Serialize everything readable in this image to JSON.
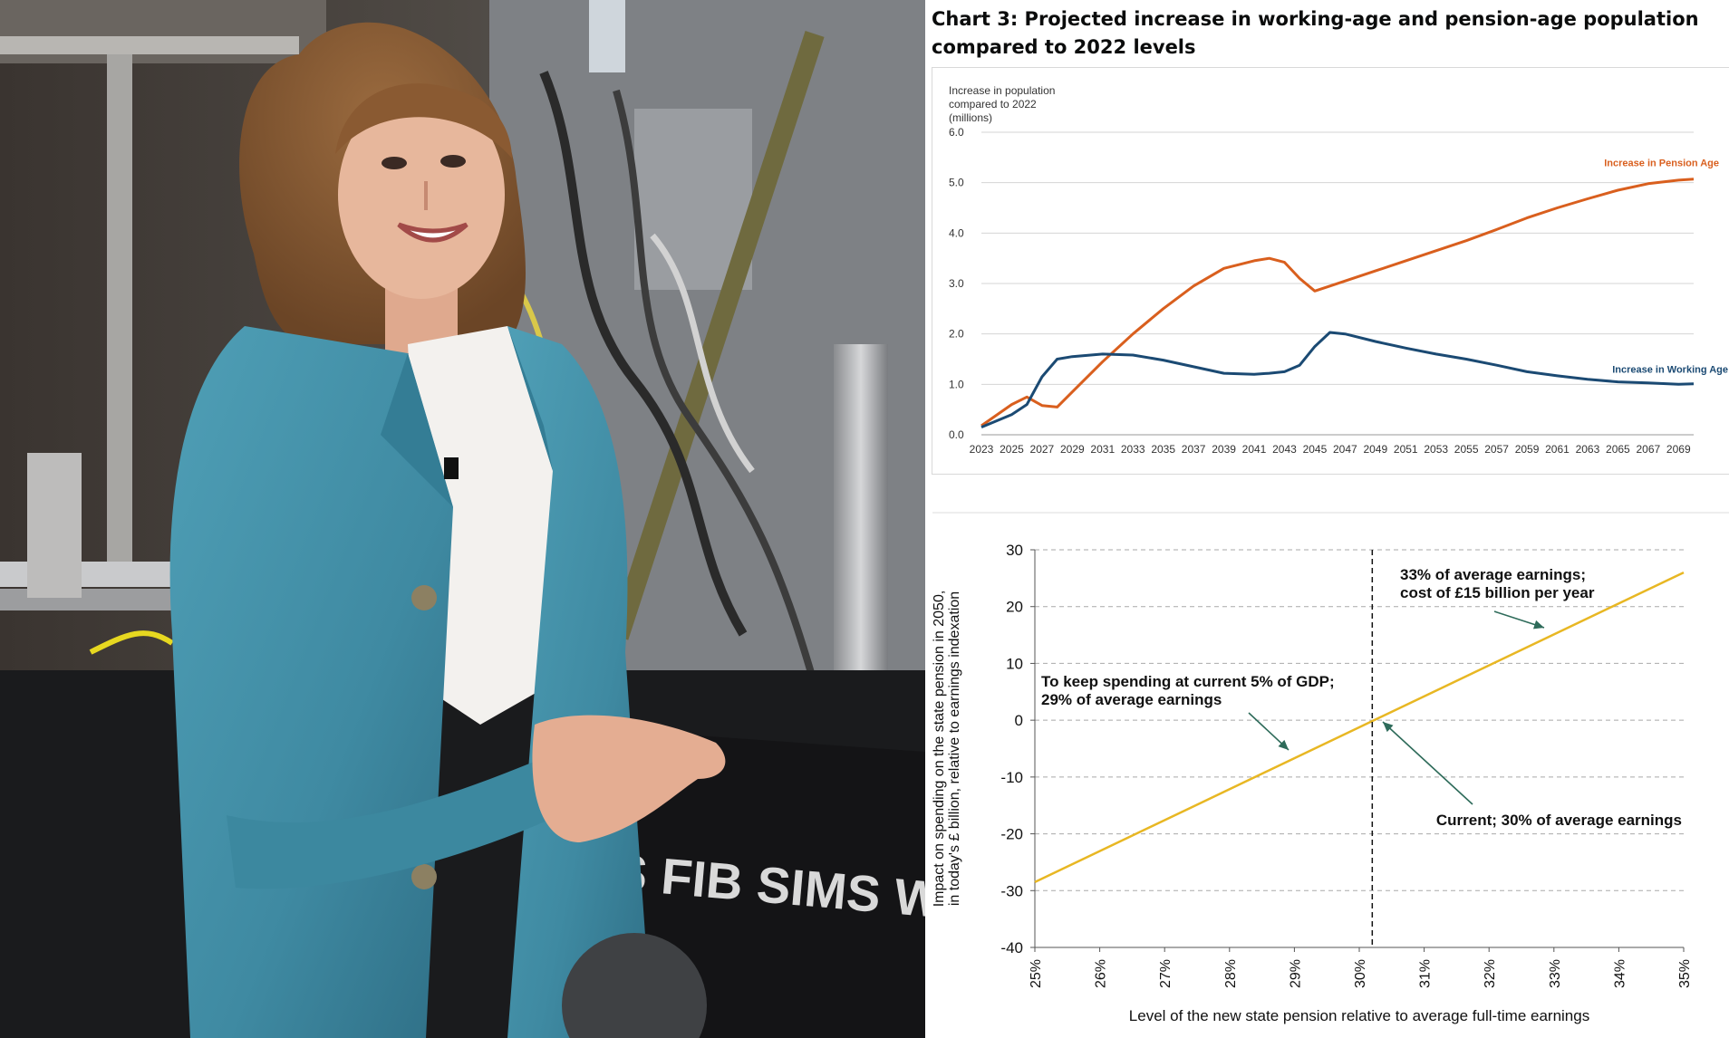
{
  "photo": {
    "machine_text": "IS FIB SIMS WORKS"
  },
  "colors": {
    "pension_line": "#d95f1e",
    "working_line": "#1b4a73",
    "policy_line": "#e8b723",
    "annotation_arrow": "#2e6b5a"
  },
  "chart_data": [
    {
      "type": "line",
      "title": "Chart 3: Projected increase in working-age and pension-age population compared to 2022 levels",
      "ylabel": "Increase in population compared to 2022 (millions)",
      "ylabel_lines": [
        "Increase in population",
        "compared to 2022",
        "(millions)"
      ],
      "ylim": [
        0,
        6
      ],
      "yticks": [
        "0.0",
        "1.0",
        "2.0",
        "3.0",
        "4.0",
        "5.0",
        "6.0"
      ],
      "xticks": [
        "2023",
        "2025",
        "2027",
        "2029",
        "2031",
        "2033",
        "2035",
        "2037",
        "2039",
        "2041",
        "2043",
        "2045",
        "2047",
        "2049",
        "2051",
        "2053",
        "2055",
        "2057",
        "2059",
        "2061",
        "2063",
        "2065",
        "2067",
        "2069"
      ],
      "grid": "horizontal",
      "x": [
        2023,
        2025,
        2026,
        2027,
        2028,
        2029,
        2031,
        2033,
        2035,
        2037,
        2039,
        2041,
        2042,
        2043,
        2044,
        2045,
        2046,
        2047,
        2049,
        2051,
        2053,
        2055,
        2057,
        2059,
        2061,
        2063,
        2065,
        2067,
        2069,
        2070
      ],
      "series": [
        {
          "name": "Increase in Pension Age",
          "values": [
            0.18,
            0.6,
            0.75,
            0.58,
            0.55,
            0.85,
            1.45,
            2.0,
            2.5,
            2.95,
            3.3,
            3.45,
            3.5,
            3.42,
            3.1,
            2.85,
            2.95,
            3.05,
            3.25,
            3.45,
            3.65,
            3.85,
            4.07,
            4.3,
            4.5,
            4.68,
            4.85,
            4.98,
            5.05,
            5.07
          ]
        },
        {
          "name": "Increase in Working Age",
          "values": [
            0.15,
            0.4,
            0.6,
            1.15,
            1.5,
            1.55,
            1.6,
            1.58,
            1.48,
            1.35,
            1.22,
            1.2,
            1.22,
            1.25,
            1.38,
            1.75,
            2.03,
            2.0,
            1.85,
            1.72,
            1.6,
            1.5,
            1.38,
            1.25,
            1.17,
            1.1,
            1.05,
            1.03,
            1.0,
            1.01
          ]
        }
      ]
    },
    {
      "type": "line",
      "title": "",
      "ylabel_lines": [
        "Impact on spending on the state pension in 2050,",
        "in today's £ billion, relative to earnings indexation"
      ],
      "xlabel": "Level of the new state pension relative to average full-time earnings",
      "ylim": [
        -40,
        30
      ],
      "yticks": [
        "30",
        "20",
        "10",
        "0",
        "-10",
        "-20",
        "-30",
        "-40"
      ],
      "xlim": [
        25,
        35
      ],
      "xticks": [
        "25%",
        "26%",
        "27%",
        "28%",
        "29%",
        "30%",
        "31%",
        "32%",
        "33%",
        "34%",
        "35%"
      ],
      "grid": "horizontal dashed",
      "series": [
        {
          "x": [
            25,
            35
          ],
          "values": [
            -28.5,
            26
          ]
        }
      ],
      "reference_line_x": 30.2,
      "annotations": [
        {
          "lines": [
            "33% of average earnings;",
            "cost of £15 billion per year"
          ]
        },
        {
          "lines": [
            "To keep spending at current 5% of GDP;",
            " 29% of average earnings"
          ]
        },
        {
          "lines": [
            "Current; 30% of average earnings"
          ]
        }
      ]
    }
  ]
}
